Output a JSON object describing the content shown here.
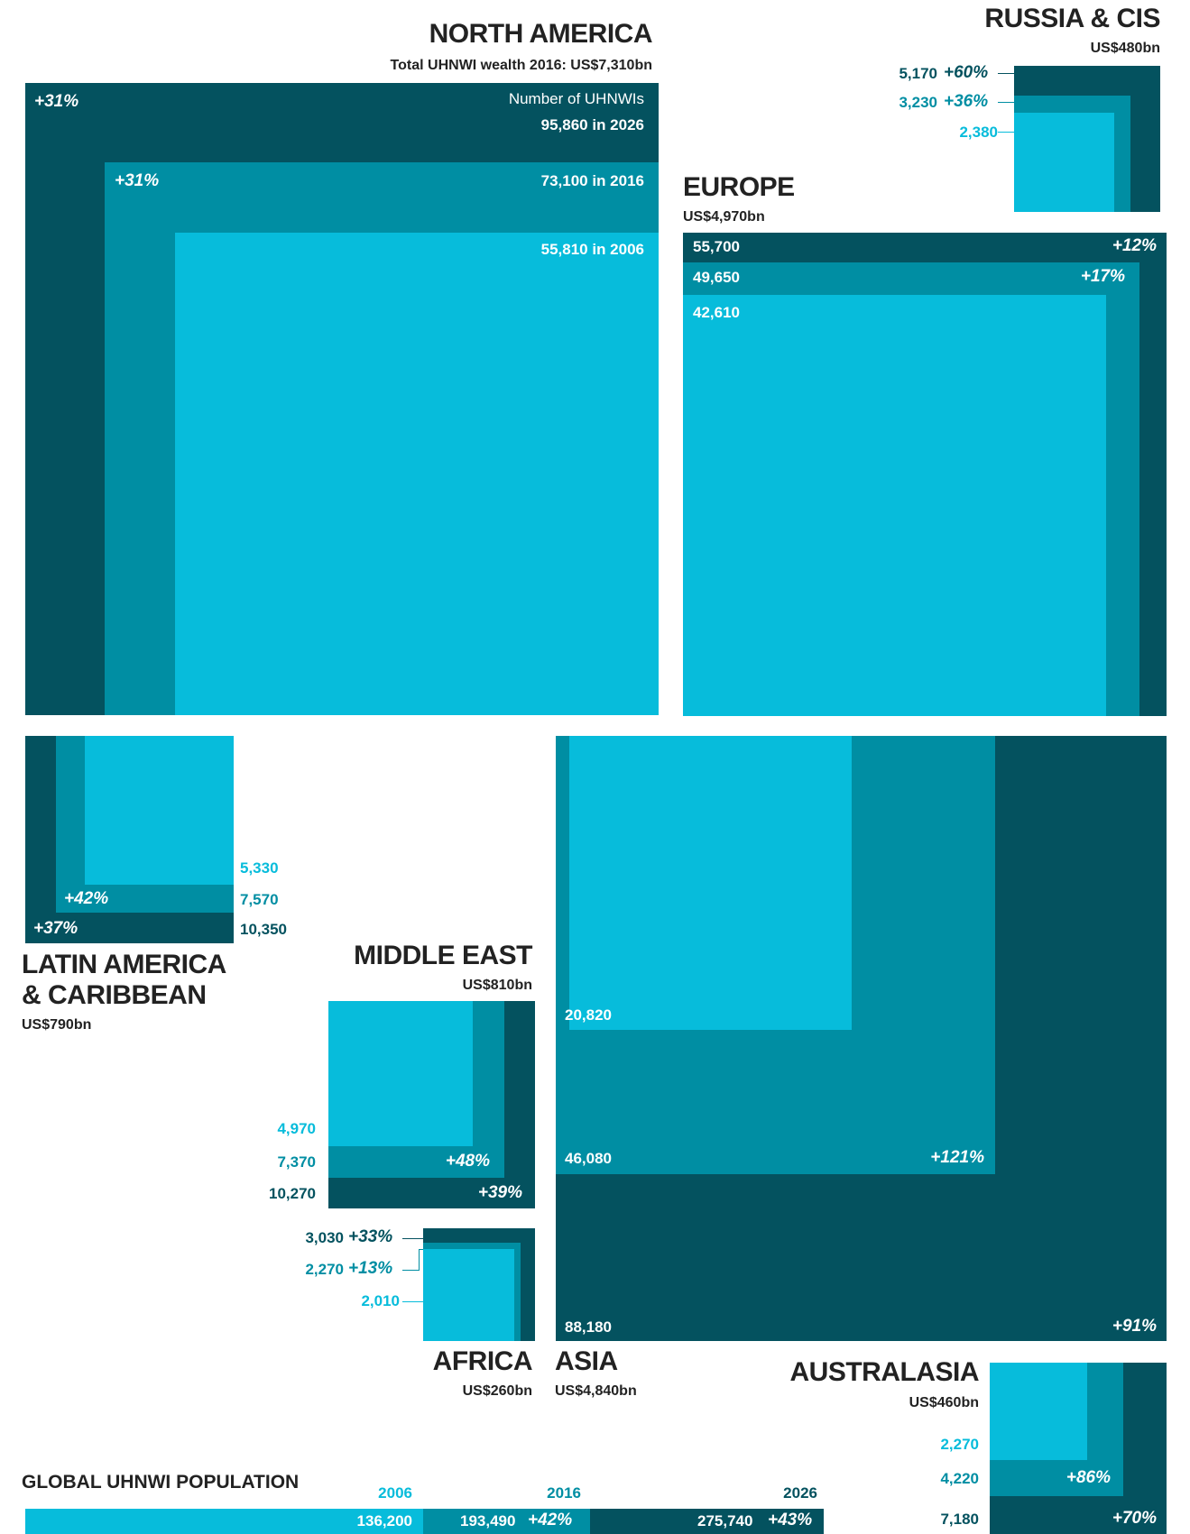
{
  "colors": {
    "y2006": "#07bcdb",
    "y2016": "#008ea3",
    "y2026": "#04525f",
    "text": "#222222"
  },
  "chart_data": {
    "type": "nested-square-area",
    "title": "",
    "years": [
      "2006",
      "2016",
      "2026"
    ],
    "regions": {
      "north_america": {
        "name": "NORTH AMERICA",
        "wealth": "Total UHNWI wealth 2016: US$7,310bn",
        "caption": "Number of UHNWIs",
        "v2006": 55810,
        "v2016": 73100,
        "v2026": 95860,
        "l2006": "55,810 in 2006",
        "l2016": "73,100 in 2016",
        "l2026": "95,860 in 2026",
        "g2016": "+31%",
        "g2026": "+31%"
      },
      "russia": {
        "name": "RUSSIA & CIS",
        "wealth": "US$480bn",
        "v2006": 2380,
        "v2016": 3230,
        "v2026": 5170,
        "l2006": "2,380",
        "l2016": "3,230",
        "l2026": "5,170",
        "g2016": "+36%",
        "g2026": "+60%"
      },
      "europe": {
        "name": "EUROPE",
        "wealth": "US$4,970bn",
        "v2006": 42610,
        "v2016": 49650,
        "v2026": 55700,
        "l2006": "42,610",
        "l2016": "49,650",
        "l2026": "55,700",
        "g2016": "+17%",
        "g2026": "+12%"
      },
      "latam": {
        "name1": "LATIN AMERICA",
        "name2": "& CARIBBEAN",
        "wealth": "US$790bn",
        "v2006": 5330,
        "v2016": 7570,
        "v2026": 10350,
        "l2006": "5,330",
        "l2016": "7,570",
        "l2026": "10,350",
        "g2016": "+42%",
        "g2026": "+37%"
      },
      "middle_east": {
        "name": "MIDDLE EAST",
        "wealth": "US$810bn",
        "v2006": 4970,
        "v2016": 7370,
        "v2026": 10270,
        "l2006": "4,970",
        "l2016": "7,370",
        "l2026": "10,270",
        "g2016": "+48%",
        "g2026": "+39%"
      },
      "africa": {
        "name": "AFRICA",
        "wealth": "US$260bn",
        "v2006": 2010,
        "v2016": 2270,
        "v2026": 3030,
        "l2006": "2,010",
        "l2016": "2,270",
        "l2026": "3,030",
        "g2016": "+13%",
        "g2026": "+33%"
      },
      "asia": {
        "name": "ASIA",
        "wealth": "US$4,840bn",
        "v2006": 20820,
        "v2016": 46080,
        "v2026": 88180,
        "l2006": "20,820",
        "l2016": "46,080",
        "l2026": "88,180",
        "g2016": "+121%",
        "g2026": "+91%"
      },
      "australasia": {
        "name": "AUSTRALASIA",
        "wealth": "US$460bn",
        "v2006": 2270,
        "v2016": 4220,
        "v2026": 7180,
        "l2006": "2,270",
        "l2016": "4,220",
        "l2026": "7,180",
        "g2016": "+86%",
        "g2026": "+70%"
      }
    },
    "global": {
      "title": "GLOBAL UHNWI POPULATION",
      "years": [
        "2006",
        "2016",
        "2026"
      ],
      "values": [
        136200,
        193490,
        275740
      ],
      "labels": [
        "136,200",
        "193,490",
        "275,740"
      ],
      "growth": [
        "",
        "+42%",
        "+43%"
      ]
    }
  }
}
